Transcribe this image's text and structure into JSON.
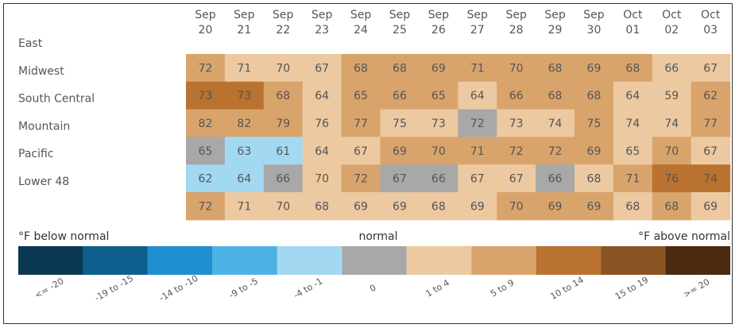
{
  "chart_data": {
    "type": "heatmap",
    "columns": [
      {
        "month": "Sep",
        "day": "20"
      },
      {
        "month": "Sep",
        "day": "21"
      },
      {
        "month": "Sep",
        "day": "22"
      },
      {
        "month": "Sep",
        "day": "23"
      },
      {
        "month": "Sep",
        "day": "24"
      },
      {
        "month": "Sep",
        "day": "25"
      },
      {
        "month": "Sep",
        "day": "26"
      },
      {
        "month": "Sep",
        "day": "27"
      },
      {
        "month": "Sep",
        "day": "28"
      },
      {
        "month": "Sep",
        "day": "29"
      },
      {
        "month": "Sep",
        "day": "30"
      },
      {
        "month": "Oct",
        "day": "01"
      },
      {
        "month": "Oct",
        "day": "02"
      },
      {
        "month": "Oct",
        "day": "03"
      }
    ],
    "rows": [
      {
        "name": "East",
        "values": [
          72,
          71,
          70,
          67,
          68,
          68,
          69,
          71,
          70,
          68,
          69,
          68,
          66,
          67
        ],
        "categories": [
          5,
          1,
          1,
          1,
          5,
          5,
          5,
          5,
          5,
          5,
          5,
          5,
          1,
          1
        ]
      },
      {
        "name": "Midwest",
        "values": [
          73,
          73,
          68,
          64,
          65,
          66,
          65,
          64,
          66,
          68,
          68,
          64,
          59,
          62
        ],
        "categories": [
          10,
          10,
          5,
          1,
          5,
          5,
          5,
          1,
          5,
          5,
          5,
          1,
          1,
          5
        ]
      },
      {
        "name": "South Central",
        "values": [
          82,
          82,
          79,
          76,
          77,
          75,
          73,
          72,
          73,
          74,
          75,
          74,
          74,
          77
        ],
        "categories": [
          5,
          5,
          5,
          1,
          5,
          1,
          1,
          0,
          1,
          1,
          5,
          1,
          1,
          5
        ]
      },
      {
        "name": "Mountain",
        "values": [
          65,
          63,
          61,
          64,
          67,
          69,
          70,
          71,
          72,
          72,
          69,
          65,
          70,
          67
        ],
        "categories": [
          0,
          -4,
          -4,
          1,
          1,
          5,
          5,
          5,
          5,
          5,
          5,
          1,
          5,
          1
        ]
      },
      {
        "name": "Pacific",
        "values": [
          62,
          64,
          66,
          70,
          72,
          67,
          66,
          67,
          67,
          66,
          68,
          71,
          76,
          74
        ],
        "categories": [
          -4,
          -4,
          0,
          1,
          5,
          0,
          0,
          1,
          1,
          0,
          1,
          5,
          10,
          10
        ]
      },
      {
        "name": "Lower 48",
        "values": [
          72,
          71,
          70,
          68,
          69,
          69,
          68,
          69,
          70,
          69,
          69,
          68,
          68,
          69
        ],
        "categories": [
          5,
          1,
          1,
          1,
          1,
          1,
          1,
          1,
          5,
          5,
          5,
          1,
          5,
          1
        ]
      }
    ],
    "legend": {
      "below_label": "°F below normal",
      "normal_label": "normal",
      "above_label": "°F above normal",
      "bins": [
        {
          "key": -20,
          "label": "<= -20",
          "color": "#0b3954"
        },
        {
          "key": -15,
          "label": "-19 to -15",
          "color": "#0f5f8f"
        },
        {
          "key": -10,
          "label": "-14 to -10",
          "color": "#1f8fd0"
        },
        {
          "key": -9,
          "label": "-9 to -5",
          "color": "#4cb2e6"
        },
        {
          "key": -4,
          "label": "-4 to -1",
          "color": "#a3d8f2"
        },
        {
          "key": 0,
          "label": "0",
          "color": "#a8a8a8"
        },
        {
          "key": 1,
          "label": "1 to 4",
          "color": "#ecc9a0"
        },
        {
          "key": 5,
          "label": "5 to 9",
          "color": "#d9a46c"
        },
        {
          "key": 10,
          "label": "10 to 14",
          "color": "#b9722f"
        },
        {
          "key": 15,
          "label": "15 to 19",
          "color": "#8a5424"
        },
        {
          "key": 20,
          "label": ">= 20",
          "color": "#4a2b12"
        }
      ]
    }
  }
}
